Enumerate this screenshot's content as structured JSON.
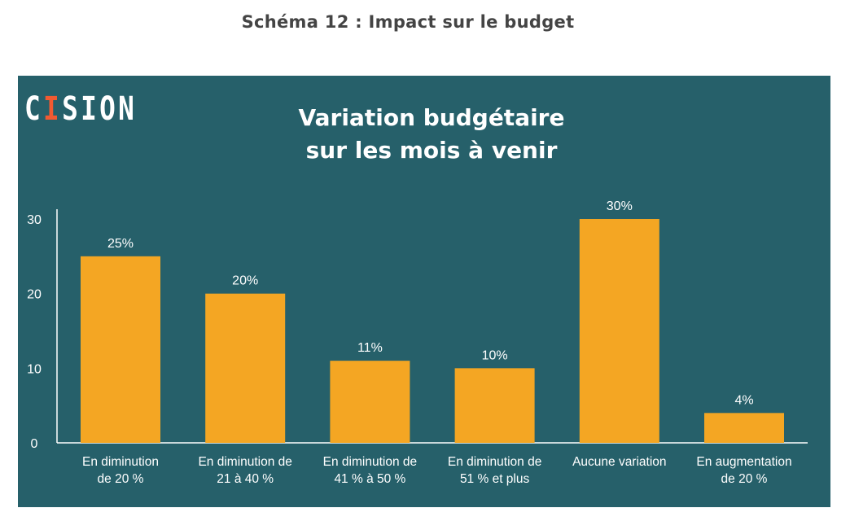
{
  "page": {
    "title": "Schéma 12 : Impact sur le budget"
  },
  "logo": {
    "text_before": "C",
    "text_dot_letter": "I",
    "text_after": "SION"
  },
  "colors": {
    "panel_bg": "#26606a",
    "bar": "#f4a623",
    "text": "#ffffff",
    "logo_accent": "#f15a31"
  },
  "chart_data": {
    "type": "bar",
    "title_line1": "Variation budgétaire",
    "title_line2": "sur les mois à venir",
    "categories": [
      [
        "En diminution",
        "de 20 %"
      ],
      [
        "En diminution de",
        "21 à 40 %"
      ],
      [
        "En diminution de",
        "41 % à 50 %"
      ],
      [
        "En diminution de",
        "51 % et plus"
      ],
      [
        "Aucune variation"
      ],
      [
        "En augmentation",
        "de 20 %"
      ]
    ],
    "values": [
      25,
      20,
      11,
      10,
      30,
      4
    ],
    "value_labels": [
      "25%",
      "20%",
      "11%",
      "10%",
      "30%",
      "4%"
    ],
    "yticks": [
      "0",
      "10",
      "20",
      "30"
    ],
    "ylim": [
      0,
      30
    ],
    "grid": false,
    "legend": "none"
  }
}
